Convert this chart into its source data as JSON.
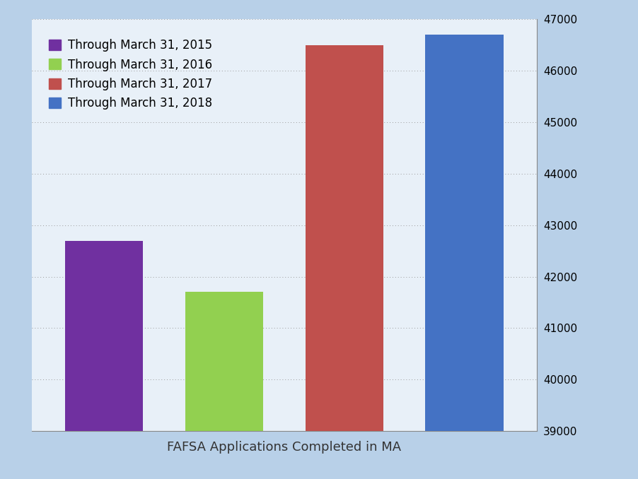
{
  "categories": [
    "Through March 31, 2015",
    "Through March 31, 2016",
    "Through March 31, 2017",
    "Through March 31, 2018"
  ],
  "values": [
    42700,
    41700,
    46500,
    46700
  ],
  "bar_colors": [
    "#7030A0",
    "#92D050",
    "#C0504D",
    "#4472C4"
  ],
  "xlabel": "FAFSA Applications Completed in MA",
  "ylim": [
    39000,
    47000
  ],
  "yticks": [
    39000,
    40000,
    41000,
    42000,
    43000,
    44000,
    45000,
    46000,
    47000
  ],
  "outer_bg_color": "#B8D0E8",
  "plot_bg_color": "#E8F0F8",
  "grid_color": "#999999",
  "xlabel_fontsize": 13,
  "tick_fontsize": 11,
  "legend_fontsize": 12
}
